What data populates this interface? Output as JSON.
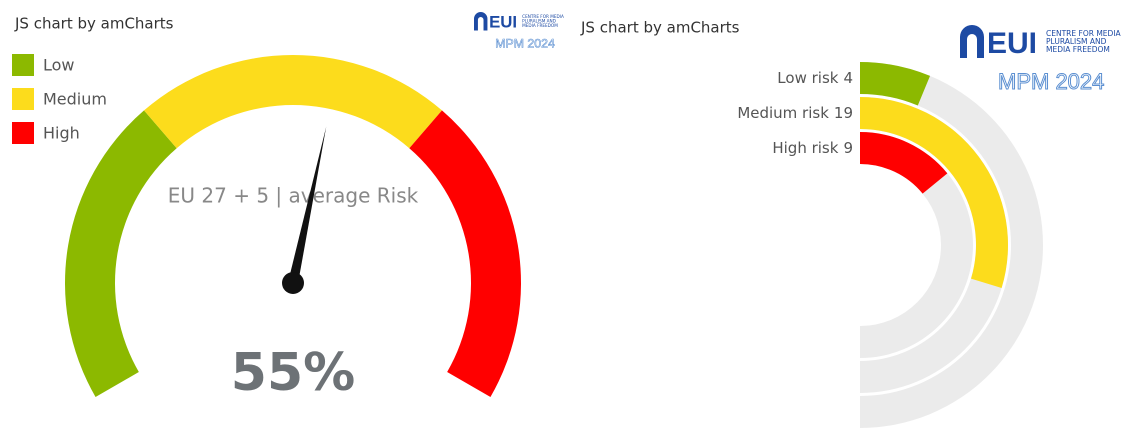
{
  "credit": "JS chart by amCharts",
  "logo": {
    "mark": "EUI",
    "lines": [
      "CENTRE FOR MEDIA",
      "PLURALISM AND",
      "MEDIA FREEDOM"
    ],
    "edition": "MPM 2024"
  },
  "chart_data": [
    {
      "type": "gauge",
      "title": "EU 27 + 5 | average Risk",
      "value": 55,
      "value_label": "55%",
      "ylim": [
        0,
        100
      ],
      "legend": "top-left",
      "bands": [
        {
          "name": "Low",
          "color": "#8cb900",
          "from": 0,
          "to": 33
        },
        {
          "name": "Medium",
          "color": "#fcdc1c",
          "from": 33,
          "to": 67
        },
        {
          "name": "High",
          "color": "#ff0000",
          "from": 67,
          "to": 100
        }
      ]
    },
    {
      "type": "radial-bar",
      "categories": [
        "Low risk",
        "Medium risk",
        "High risk"
      ],
      "values": [
        4,
        19,
        9
      ],
      "colors": [
        "#8cb900",
        "#fcdc1c",
        "#ff0000"
      ],
      "track_color": "#ebebeb",
      "xlim": [
        0,
        32
      ]
    }
  ]
}
